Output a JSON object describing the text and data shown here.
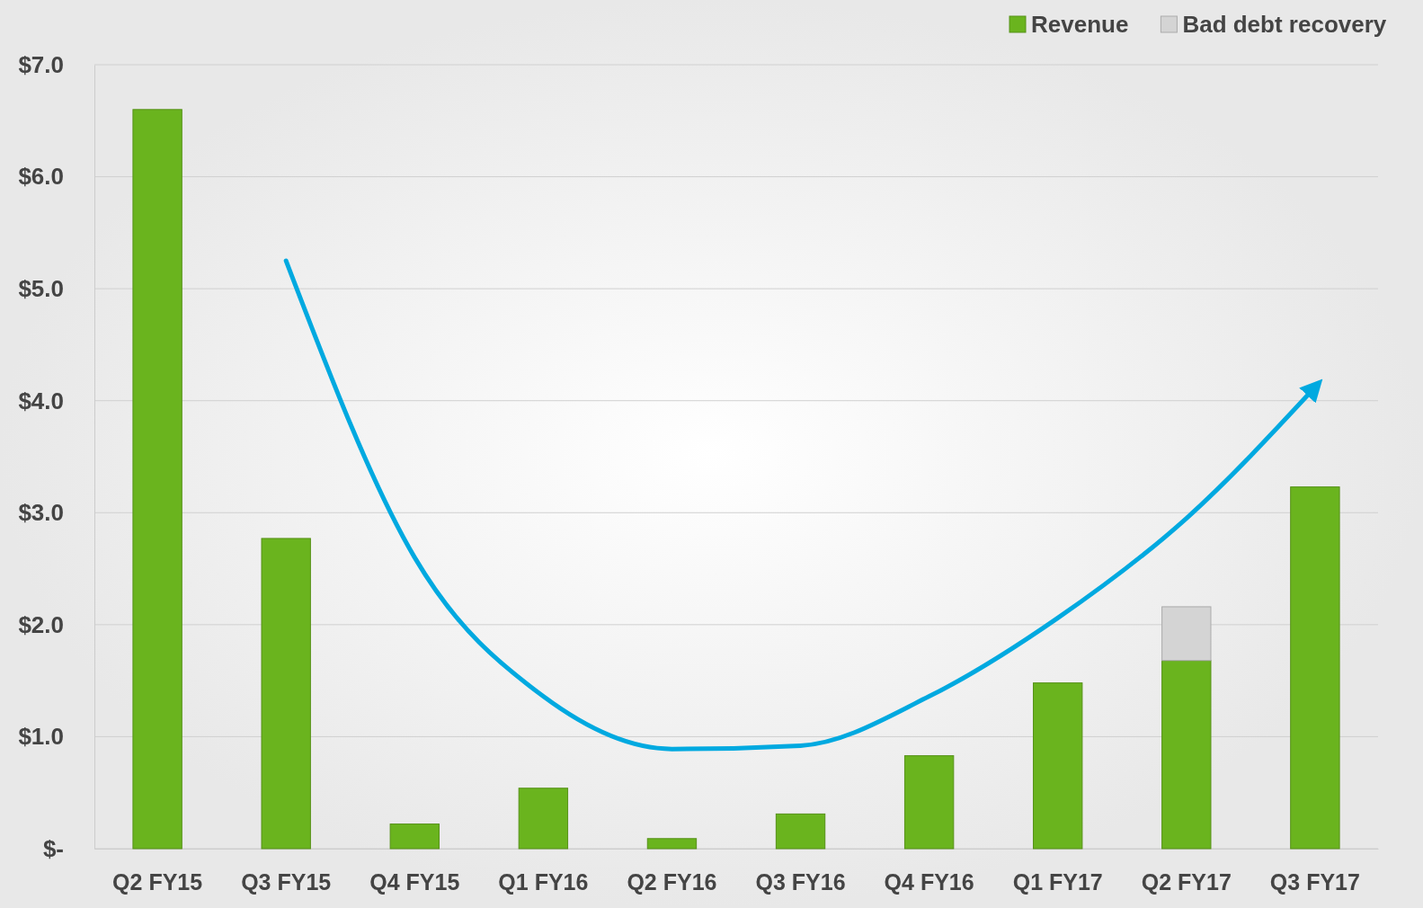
{
  "chart_data": {
    "type": "bar",
    "stacked": true,
    "categories": [
      "Q2 FY15",
      "Q3 FY15",
      "Q4 FY15",
      "Q1 FY16",
      "Q2 FY16",
      "Q3 FY16",
      "Q4 FY16",
      "Q1 FY17",
      "Q2 FY17",
      "Q3 FY17"
    ],
    "series": [
      {
        "name": "Revenue",
        "color": "#6ab41e",
        "values": [
          6.6,
          2.77,
          0.22,
          0.54,
          0.09,
          0.31,
          0.83,
          1.48,
          1.68,
          3.23
        ]
      },
      {
        "name": "Bad debt recovery",
        "color": "#d4d4d4",
        "values": [
          null,
          null,
          null,
          null,
          null,
          null,
          null,
          null,
          0.48,
          null
        ]
      },
      {
        "type": "line",
        "color": "#00a9e0",
        "values": [
          null,
          5.25,
          2.6,
          1.36,
          0.89,
          0.92,
          1.36,
          2.06,
          2.95,
          4.12
        ]
      }
    ],
    "ylim": [
      0,
      7
    ],
    "yticks": [
      {
        "value": 0,
        "label": "$-"
      },
      {
        "value": 1,
        "label": "$1.0"
      },
      {
        "value": 2,
        "label": "$2.0"
      },
      {
        "value": 3,
        "label": "$3.0"
      },
      {
        "value": 4,
        "label": "$4.0"
      },
      {
        "value": 5,
        "label": "$5.0"
      },
      {
        "value": 6,
        "label": "$6.0"
      },
      {
        "value": 7,
        "label": "$7.0"
      }
    ],
    "grid": "y",
    "legend": "top right"
  }
}
